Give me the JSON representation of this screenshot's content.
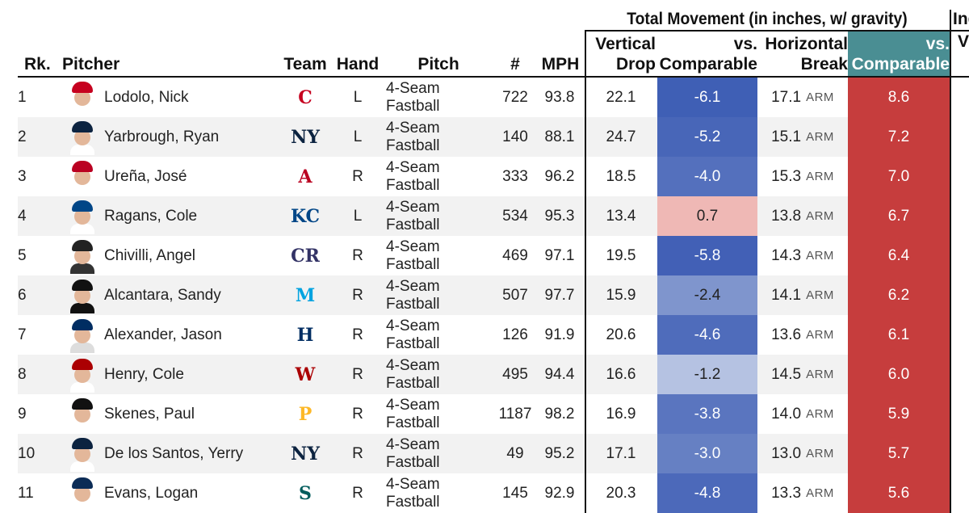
{
  "group_header": {
    "title": "Total Movement (in inches, w/ gravity)",
    "next_title": "Ind"
  },
  "columns": {
    "rank": "Rk.",
    "pitcher": "Pitcher",
    "team": "Team",
    "hand": "Hand",
    "pitch": "Pitch",
    "count": "#",
    "mph": "MPH",
    "vertical_drop_1": "Vertical",
    "vertical_drop_2": "Drop",
    "vs_comparable_1": "vs.",
    "vs_comparable_2": "Comparable",
    "horizontal_break_1": "Horizontal",
    "horizontal_break_2": "Break",
    "vs_comparable_h_1": "vs.",
    "vs_comparable_h_2": "Comparable",
    "next_col": "V"
  },
  "colors": {
    "teal_header": "#4a8e93",
    "red_column": "#c63d3d",
    "blue_strong": "#3f5fb5",
    "blue_mid": "#5c78c0",
    "blue_light": "#7f95cd",
    "blue_pale": "#b5c2e2",
    "pink": "#efb8b5"
  },
  "rows": [
    {
      "rank": "1",
      "name": "Lodolo, Nick",
      "team_icon": "reds-logo",
      "team_glyph": "C",
      "team_color": "#c6011f",
      "hand": "L",
      "pitch": "4-Seam Fastball",
      "count": "722",
      "mph": "93.8",
      "vertical_drop": "22.1",
      "vd_vs": "-6.1",
      "vd_color": "#3f5fb5",
      "vd_text": "#ffffff",
      "horizontal_break": "17.1",
      "hb_side": "ARM",
      "hb_vs": "8.6",
      "cap": "#c6011f",
      "shirt": "#ffffff"
    },
    {
      "rank": "2",
      "name": "Yarbrough, Ryan",
      "team_icon": "yankees-logo",
      "team_glyph": "NY",
      "team_color": "#0c2340",
      "hand": "L",
      "pitch": "4-Seam Fastball",
      "count": "140",
      "mph": "88.1",
      "vertical_drop": "24.7",
      "vd_vs": "-5.2",
      "vd_color": "#4866b8",
      "vd_text": "#ffffff",
      "horizontal_break": "15.1",
      "hb_side": "ARM",
      "hb_vs": "7.2",
      "cap": "#0c2340",
      "shirt": "#ffffff"
    },
    {
      "rank": "3",
      "name": "Ureña, José",
      "team_icon": "angels-logo",
      "team_glyph": "A",
      "team_color": "#ba0021",
      "hand": "R",
      "pitch": "4-Seam Fastball",
      "count": "333",
      "mph": "96.2",
      "vertical_drop": "18.5",
      "vd_vs": "-4.0",
      "vd_color": "#5470bd",
      "vd_text": "#ffffff",
      "horizontal_break": "15.3",
      "hb_side": "ARM",
      "hb_vs": "7.0",
      "cap": "#ba0021",
      "shirt": "#ffffff"
    },
    {
      "rank": "4",
      "name": "Ragans, Cole",
      "team_icon": "royals-logo",
      "team_glyph": "KC",
      "team_color": "#004687",
      "hand": "L",
      "pitch": "4-Seam Fastball",
      "count": "534",
      "mph": "95.3",
      "vertical_drop": "13.4",
      "vd_vs": "0.7",
      "vd_color": "#efb8b5",
      "vd_text": "#222222",
      "horizontal_break": "13.8",
      "hb_side": "ARM",
      "hb_vs": "6.7",
      "cap": "#004687",
      "shirt": "#ffffff"
    },
    {
      "rank": "5",
      "name": "Chivilli, Angel",
      "team_icon": "rockies-logo",
      "team_glyph": "CR",
      "team_color": "#333366",
      "hand": "R",
      "pitch": "4-Seam Fastball",
      "count": "469",
      "mph": "97.1",
      "vertical_drop": "19.5",
      "vd_vs": "-5.8",
      "vd_color": "#4260b6",
      "vd_text": "#ffffff",
      "horizontal_break": "14.3",
      "hb_side": "ARM",
      "hb_vs": "6.4",
      "cap": "#222222",
      "shirt": "#333333"
    },
    {
      "rank": "6",
      "name": "Alcantara, Sandy",
      "team_icon": "marlins-logo",
      "team_glyph": "M",
      "team_color": "#00a3e0",
      "hand": "R",
      "pitch": "4-Seam Fastball",
      "count": "507",
      "mph": "97.7",
      "vertical_drop": "15.9",
      "vd_vs": "-2.4",
      "vd_color": "#7f95cd",
      "vd_text": "#222222",
      "horizontal_break": "14.1",
      "hb_side": "ARM",
      "hb_vs": "6.2",
      "cap": "#111111",
      "shirt": "#111111"
    },
    {
      "rank": "7",
      "name": "Alexander, Jason",
      "team_icon": "astros-logo",
      "team_glyph": "H",
      "team_color": "#002d62",
      "hand": "R",
      "pitch": "4-Seam Fastball",
      "count": "126",
      "mph": "91.9",
      "vertical_drop": "20.6",
      "vd_vs": "-4.6",
      "vd_color": "#4f6cbb",
      "vd_text": "#ffffff",
      "horizontal_break": "13.6",
      "hb_side": "ARM",
      "hb_vs": "6.1",
      "cap": "#002d62",
      "shirt": "#dddddd"
    },
    {
      "rank": "8",
      "name": "Henry, Cole",
      "team_icon": "nationals-logo",
      "team_glyph": "W",
      "team_color": "#ab0003",
      "hand": "R",
      "pitch": "4-Seam Fastball",
      "count": "495",
      "mph": "94.4",
      "vertical_drop": "16.6",
      "vd_vs": "-1.2",
      "vd_color": "#b5c2e2",
      "vd_text": "#222222",
      "horizontal_break": "14.5",
      "hb_side": "ARM",
      "hb_vs": "6.0",
      "cap": "#ab0003",
      "shirt": "#ffffff"
    },
    {
      "rank": "9",
      "name": "Skenes, Paul",
      "team_icon": "pirates-logo",
      "team_glyph": "P",
      "team_color": "#fdb827",
      "hand": "R",
      "pitch": "4-Seam Fastball",
      "count": "1187",
      "mph": "98.2",
      "vertical_drop": "16.9",
      "vd_vs": "-3.8",
      "vd_color": "#5a75bf",
      "vd_text": "#ffffff",
      "horizontal_break": "14.0",
      "hb_side": "ARM",
      "hb_vs": "5.9",
      "cap": "#111111",
      "shirt": "#ffffff"
    },
    {
      "rank": "10",
      "name": "De los Santos, Yerry",
      "team_icon": "yankees-logo",
      "team_glyph": "NY",
      "team_color": "#0c2340",
      "hand": "R",
      "pitch": "4-Seam Fastball",
      "count": "49",
      "mph": "95.2",
      "vertical_drop": "17.1",
      "vd_vs": "-3.0",
      "vd_color": "#6680c3",
      "vd_text": "#ffffff",
      "horizontal_break": "13.0",
      "hb_side": "ARM",
      "hb_vs": "5.7",
      "cap": "#0c2340",
      "shirt": "#ffffff"
    },
    {
      "rank": "11",
      "name": "Evans, Logan",
      "team_icon": "mariners-logo",
      "team_glyph": "S",
      "team_color": "#005c5c",
      "hand": "R",
      "pitch": "4-Seam Fastball",
      "count": "145",
      "mph": "92.9",
      "vertical_drop": "20.3",
      "vd_vs": "-4.8",
      "vd_color": "#4c69ba",
      "vd_text": "#ffffff",
      "horizontal_break": "13.3",
      "hb_side": "ARM",
      "hb_vs": "5.6",
      "cap": "#0c2c56",
      "shirt": "#ffffff"
    }
  ]
}
